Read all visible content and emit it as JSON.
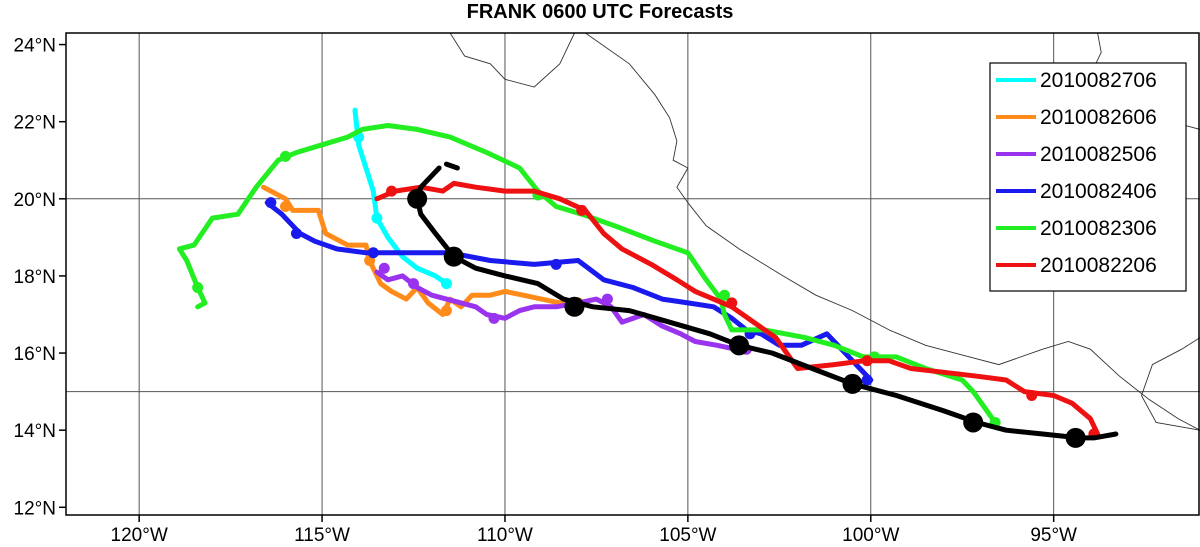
{
  "title": "FRANK 0600 UTC Forecasts",
  "chart_data": {
    "type": "track-map",
    "title": "FRANK 0600 UTC Forecasts",
    "xlim": [
      -122,
      -91
    ],
    "ylim": [
      11.8,
      24.3
    ],
    "x_ticks": [
      {
        "value": -120,
        "label": "120°W"
      },
      {
        "value": -115,
        "label": "115°W"
      },
      {
        "value": -110,
        "label": "110°W"
      },
      {
        "value": -105,
        "label": "105°W"
      },
      {
        "value": -100,
        "label": "100°W"
      },
      {
        "value": -95,
        "label": "95°W"
      }
    ],
    "y_ticks": [
      {
        "value": 12,
        "label": "12°N"
      },
      {
        "value": 14,
        "label": "14°N"
      },
      {
        "value": 16,
        "label": "16°N"
      },
      {
        "value": 18,
        "label": "18°N"
      },
      {
        "value": 20,
        "label": "20°N"
      },
      {
        "value": 22,
        "label": "22°N"
      },
      {
        "value": 24,
        "label": "24°N"
      }
    ],
    "gridlines": {
      "lon": [
        -120,
        -115,
        -110,
        -105,
        -100,
        -95
      ],
      "lat": [
        15,
        20
      ]
    },
    "legend_position": "top-right",
    "coastline": [
      [
        [
          -111.5,
          24.3
        ],
        [
          -111.1,
          23.7
        ],
        [
          -110.4,
          23.5
        ],
        [
          -110.0,
          23.1
        ],
        [
          -109.2,
          22.9
        ],
        [
          -108.5,
          23.5
        ],
        [
          -108.1,
          24.3
        ]
      ],
      [
        [
          -107.8,
          24.3
        ],
        [
          -106.6,
          23.5
        ],
        [
          -105.9,
          22.7
        ],
        [
          -105.5,
          22.1
        ],
        [
          -105.3,
          21.5
        ],
        [
          -105.4,
          21.0
        ],
        [
          -105.0,
          20.8
        ],
        [
          -105.3,
          20.3
        ],
        [
          -105.0,
          19.9
        ],
        [
          -104.5,
          19.3
        ],
        [
          -103.6,
          18.7
        ],
        [
          -102.4,
          18.0
        ],
        [
          -101.5,
          17.5
        ],
        [
          -100.5,
          17.1
        ],
        [
          -99.5,
          16.6
        ],
        [
          -98.5,
          16.2
        ],
        [
          -97.3,
          15.9
        ],
        [
          -96.5,
          15.7
        ],
        [
          -95.3,
          16.1
        ],
        [
          -94.6,
          16.3
        ],
        [
          -94.0,
          16.1
        ],
        [
          -93.2,
          15.4
        ],
        [
          -92.4,
          14.8
        ],
        [
          -91.6,
          14.3
        ],
        [
          -91.0,
          14.0
        ]
      ],
      [
        [
          -93.8,
          24.3
        ],
        [
          -93.7,
          23.8
        ],
        [
          -93.9,
          23.4
        ],
        [
          -93.6,
          22.8
        ],
        [
          -93.1,
          22.4
        ],
        [
          -92.2,
          22.1
        ],
        [
          -91.0,
          21.8
        ]
      ],
      [
        [
          -91.0,
          16.4
        ],
        [
          -91.5,
          16.1
        ],
        [
          -92.3,
          15.7
        ],
        [
          -92.6,
          14.9
        ],
        [
          -92.2,
          14.2
        ],
        [
          -91.0,
          14.0
        ]
      ]
    ],
    "series": [
      {
        "name": "2010082706",
        "color": "#00ffff",
        "points": [
          [
            -114.1,
            22.3
          ],
          [
            -114.0,
            21.4
          ],
          [
            -113.8,
            20.8
          ],
          [
            -113.6,
            20.2
          ],
          [
            -113.5,
            19.5
          ],
          [
            -113.2,
            19.0
          ],
          [
            -112.8,
            18.5
          ],
          [
            -112.4,
            18.2
          ],
          [
            -111.9,
            18.0
          ],
          [
            -111.6,
            17.8
          ]
        ],
        "markers": [
          [
            -114.0,
            21.6
          ],
          [
            -113.5,
            19.5
          ],
          [
            -111.6,
            17.8
          ]
        ]
      },
      {
        "name": "2010082606",
        "color": "#ff8c1a",
        "points": [
          [
            -116.6,
            20.3
          ],
          [
            -116.0,
            20.0
          ],
          [
            -115.8,
            19.7
          ],
          [
            -115.1,
            19.7
          ],
          [
            -114.9,
            19.1
          ],
          [
            -114.3,
            18.8
          ],
          [
            -113.8,
            18.8
          ],
          [
            -113.7,
            18.4
          ],
          [
            -113.4,
            17.8
          ],
          [
            -113.1,
            17.6
          ],
          [
            -112.7,
            17.4
          ],
          [
            -112.4,
            17.7
          ],
          [
            -112.1,
            17.3
          ],
          [
            -111.7,
            17.0
          ],
          [
            -111.5,
            17.4
          ],
          [
            -111.2,
            17.2
          ],
          [
            -110.9,
            17.5
          ],
          [
            -110.4,
            17.5
          ],
          [
            -110.0,
            17.6
          ],
          [
            -109.5,
            17.5
          ],
          [
            -109.0,
            17.4
          ],
          [
            -108.5,
            17.3
          ],
          [
            -108.0,
            17.3
          ]
        ],
        "markers": [
          [
            -116.0,
            19.8
          ],
          [
            -113.7,
            18.4
          ],
          [
            -111.6,
            17.1
          ],
          [
            -108.0,
            17.3
          ]
        ]
      },
      {
        "name": "2010082506",
        "color": "#9933ee",
        "points": [
          [
            -113.5,
            18.1
          ],
          [
            -113.2,
            17.9
          ],
          [
            -112.8,
            18.0
          ],
          [
            -112.4,
            17.7
          ],
          [
            -112.0,
            17.5
          ],
          [
            -111.6,
            17.4
          ],
          [
            -111.2,
            17.3
          ],
          [
            -110.8,
            17.2
          ],
          [
            -110.5,
            17.0
          ],
          [
            -110.0,
            16.9
          ],
          [
            -109.6,
            17.1
          ],
          [
            -109.2,
            17.2
          ],
          [
            -108.6,
            17.2
          ],
          [
            -108.0,
            17.3
          ],
          [
            -107.5,
            17.4
          ],
          [
            -107.1,
            17.2
          ],
          [
            -106.8,
            16.8
          ],
          [
            -106.2,
            17.0
          ],
          [
            -105.7,
            16.7
          ],
          [
            -105.2,
            16.5
          ],
          [
            -104.8,
            16.3
          ],
          [
            -104.2,
            16.2
          ],
          [
            -103.7,
            16.1
          ],
          [
            -103.4,
            16.1
          ]
        ],
        "markers": [
          [
            -113.3,
            18.2
          ],
          [
            -112.5,
            17.8
          ],
          [
            -110.3,
            16.9
          ],
          [
            -107.2,
            17.4
          ],
          [
            -103.4,
            16.1
          ]
        ]
      },
      {
        "name": "2010082406",
        "color": "#1a1aee",
        "points": [
          [
            -116.5,
            19.9
          ],
          [
            -116.1,
            19.6
          ],
          [
            -115.8,
            19.3
          ],
          [
            -115.6,
            19.1
          ],
          [
            -115.2,
            18.9
          ],
          [
            -114.6,
            18.7
          ],
          [
            -113.8,
            18.6
          ],
          [
            -112.6,
            18.6
          ],
          [
            -111.5,
            18.6
          ],
          [
            -110.4,
            18.4
          ],
          [
            -109.2,
            18.3
          ],
          [
            -108.0,
            18.4
          ],
          [
            -107.3,
            17.9
          ],
          [
            -106.5,
            17.7
          ],
          [
            -105.7,
            17.4
          ],
          [
            -105.0,
            17.3
          ],
          [
            -104.3,
            17.2
          ],
          [
            -103.8,
            16.9
          ],
          [
            -103.4,
            16.6
          ],
          [
            -103.0,
            16.5
          ],
          [
            -102.5,
            16.2
          ],
          [
            -101.9,
            16.2
          ],
          [
            -101.2,
            16.5
          ],
          [
            -100.6,
            15.9
          ],
          [
            -100.0,
            15.3
          ]
        ],
        "markers": [
          [
            -116.4,
            19.9
          ],
          [
            -115.7,
            19.1
          ],
          [
            -113.6,
            18.6
          ],
          [
            -108.6,
            18.3
          ],
          [
            -103.3,
            16.5
          ],
          [
            -100.1,
            15.3
          ]
        ]
      },
      {
        "name": "2010082306",
        "color": "#22ee22",
        "points": [
          [
            -118.4,
            17.2
          ],
          [
            -118.2,
            17.3
          ],
          [
            -118.4,
            17.7
          ],
          [
            -118.7,
            18.4
          ],
          [
            -118.9,
            18.7
          ],
          [
            -118.5,
            18.8
          ],
          [
            -118.0,
            19.5
          ],
          [
            -117.3,
            19.6
          ],
          [
            -116.8,
            20.3
          ],
          [
            -116.2,
            21.0
          ],
          [
            -115.7,
            21.2
          ],
          [
            -115.0,
            21.4
          ],
          [
            -114.3,
            21.6
          ],
          [
            -113.9,
            21.8
          ],
          [
            -113.2,
            21.9
          ],
          [
            -112.4,
            21.8
          ],
          [
            -111.5,
            21.6
          ],
          [
            -110.5,
            21.2
          ],
          [
            -109.6,
            20.8
          ],
          [
            -109.1,
            20.2
          ],
          [
            -108.6,
            19.8
          ],
          [
            -107.9,
            19.6
          ],
          [
            -107.0,
            19.3
          ],
          [
            -105.9,
            18.9
          ],
          [
            -105.0,
            18.6
          ],
          [
            -104.5,
            17.9
          ],
          [
            -104.1,
            17.4
          ],
          [
            -104.0,
            17.0
          ],
          [
            -103.8,
            16.6
          ],
          [
            -102.9,
            16.6
          ],
          [
            -101.8,
            16.4
          ],
          [
            -101.0,
            16.2
          ],
          [
            -100.2,
            15.9
          ],
          [
            -99.3,
            15.9
          ],
          [
            -98.5,
            15.6
          ],
          [
            -97.5,
            15.3
          ],
          [
            -97.2,
            15.0
          ],
          [
            -96.9,
            14.6
          ],
          [
            -96.6,
            14.2
          ]
        ],
        "markers": [
          [
            -118.4,
            17.7
          ],
          [
            -116.0,
            21.1
          ],
          [
            -109.1,
            20.1
          ],
          [
            -104.0,
            17.5
          ],
          [
            -99.9,
            15.9
          ],
          [
            -96.6,
            14.2
          ]
        ]
      },
      {
        "name": "2010082206",
        "color": "#ee1111",
        "points": [
          [
            -113.5,
            20.0
          ],
          [
            -113.0,
            20.2
          ],
          [
            -112.3,
            20.3
          ],
          [
            -111.7,
            20.2
          ],
          [
            -111.4,
            20.4
          ],
          [
            -110.8,
            20.3
          ],
          [
            -110.0,
            20.2
          ],
          [
            -109.2,
            20.2
          ],
          [
            -108.5,
            20.0
          ],
          [
            -107.8,
            19.7
          ],
          [
            -107.3,
            19.1
          ],
          [
            -106.8,
            18.7
          ],
          [
            -106.0,
            18.3
          ],
          [
            -105.3,
            17.9
          ],
          [
            -104.8,
            17.6
          ],
          [
            -104.3,
            17.4
          ],
          [
            -103.8,
            17.2
          ],
          [
            -103.2,
            16.8
          ],
          [
            -102.6,
            16.4
          ],
          [
            -102.3,
            16.0
          ],
          [
            -102.0,
            15.6
          ],
          [
            -101.0,
            15.7
          ],
          [
            -100.2,
            15.8
          ],
          [
            -99.5,
            15.8
          ],
          [
            -98.9,
            15.6
          ],
          [
            -98.0,
            15.5
          ],
          [
            -97.1,
            15.4
          ],
          [
            -96.3,
            15.3
          ],
          [
            -95.8,
            15.0
          ],
          [
            -95.0,
            14.9
          ],
          [
            -94.5,
            14.7
          ],
          [
            -94.0,
            14.3
          ],
          [
            -93.8,
            13.9
          ],
          [
            -93.9,
            13.9
          ]
        ],
        "markers": [
          [
            -113.1,
            20.2
          ],
          [
            -107.9,
            19.7
          ],
          [
            -103.8,
            17.3
          ],
          [
            -100.1,
            15.8
          ],
          [
            -95.6,
            14.9
          ],
          [
            -93.9,
            13.9
          ]
        ]
      },
      {
        "name": "",
        "color": "#000000",
        "points": [
          [
            -112.4,
            20.0
          ],
          [
            -112.3,
            19.6
          ],
          [
            -111.9,
            19.1
          ],
          [
            -111.4,
            18.5
          ],
          [
            -110.8,
            18.2
          ],
          [
            -110.0,
            18.0
          ],
          [
            -109.1,
            17.8
          ],
          [
            -108.4,
            17.4
          ],
          [
            -107.6,
            17.2
          ],
          [
            -106.6,
            17.1
          ],
          [
            -105.5,
            16.8
          ],
          [
            -104.4,
            16.5
          ],
          [
            -103.6,
            16.2
          ],
          [
            -102.7,
            16.0
          ],
          [
            -101.6,
            15.6
          ],
          [
            -100.5,
            15.2
          ],
          [
            -99.3,
            14.9
          ],
          [
            -98.0,
            14.5
          ],
          [
            -97.1,
            14.2
          ],
          [
            -96.3,
            14.0
          ],
          [
            -95.3,
            13.9
          ],
          [
            -94.3,
            13.8
          ],
          [
            -93.9,
            13.8
          ],
          [
            -93.3,
            13.9
          ]
        ],
        "extra_segments": [
          [
            [
              -112.4,
              20.0
            ],
            [
              -112.3,
              20.3
            ],
            [
              -112.0,
              20.6
            ],
            [
              -111.8,
              20.8
            ]
          ],
          [
            [
              -111.6,
              20.9
            ],
            [
              -111.3,
              20.8
            ]
          ]
        ],
        "markers": [
          [
            -112.4,
            20.0
          ],
          [
            -111.4,
            18.5
          ],
          [
            -108.1,
            17.2
          ],
          [
            -103.6,
            16.2
          ],
          [
            -100.5,
            15.2
          ],
          [
            -97.2,
            14.2
          ],
          [
            -94.4,
            13.8
          ]
        ]
      }
    ]
  }
}
